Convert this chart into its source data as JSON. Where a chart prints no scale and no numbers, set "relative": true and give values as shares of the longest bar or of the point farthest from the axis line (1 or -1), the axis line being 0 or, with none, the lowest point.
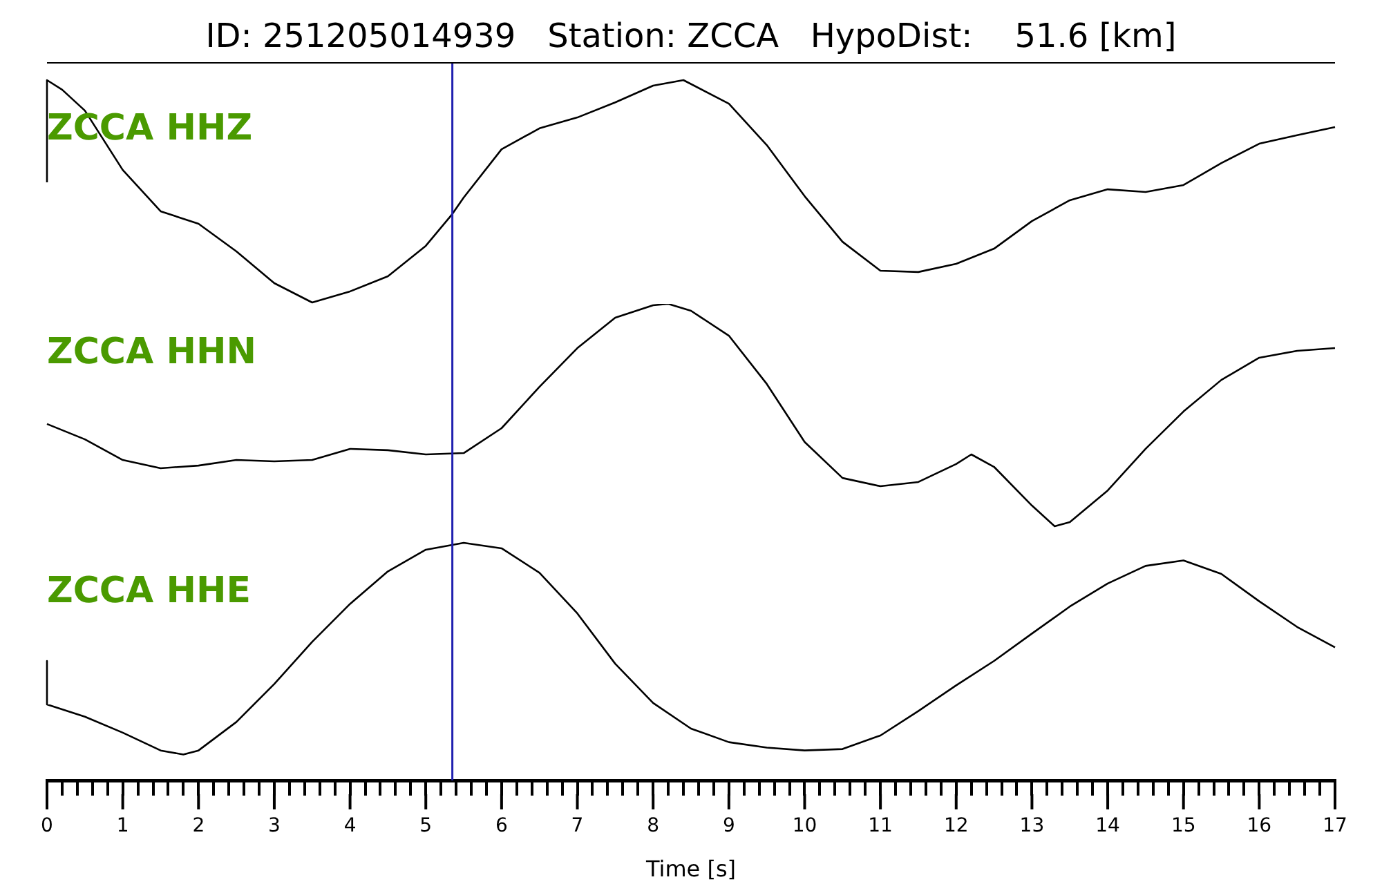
{
  "chart_data": [
    {
      "type": "line",
      "relative": true,
      "title": "ID: 251205014939   Station: ZCCA   HypoDist:    51.6 [km]",
      "annotations": [
        "ZCCA HHZ"
      ],
      "tick_labels": false,
      "xlim": [
        0,
        17
      ],
      "ref_lines": [
        {
          "axis": "x",
          "value": 5.35,
          "color": "#2020b0"
        }
      ],
      "x": [
        0,
        0,
        0.2,
        0.5,
        1,
        1.5,
        2,
        2.5,
        3,
        3.5,
        4,
        4.5,
        5,
        5.35,
        5.5,
        6,
        6.5,
        7,
        7.5,
        8,
        8.4,
        9,
        9.5,
        10,
        10.5,
        11,
        11.5,
        12,
        12.5,
        13,
        13.5,
        14,
        14.5,
        15,
        15.5,
        16,
        16.5,
        17
      ],
      "series": [
        {
          "color": "#000000",
          "values": [
            0.54,
            1,
            0.957,
            0.863,
            0.596,
            0.41,
            0.354,
            0.23,
            0.087,
            0,
            0.05,
            0.118,
            0.255,
            0.398,
            0.472,
            0.689,
            0.783,
            0.832,
            0.9,
            0.975,
            1,
            0.894,
            0.708,
            0.478,
            0.273,
            0.143,
            0.137,
            0.174,
            0.242,
            0.366,
            0.46,
            0.509,
            0.497,
            0.528,
            0.627,
            0.714,
            0.752,
            0.789
          ]
        }
      ]
    },
    {
      "type": "line",
      "relative": true,
      "annotations": [
        "ZCCA HHN"
      ],
      "tick_labels": false,
      "xlim": [
        0,
        17
      ],
      "ref_lines": [
        {
          "axis": "x",
          "value": 5.35,
          "color": "#2020b0"
        }
      ],
      "x": [
        0,
        0.5,
        1,
        1.5,
        2,
        2.5,
        3,
        3.5,
        4,
        4.5,
        5,
        5.5,
        6,
        6.5,
        7,
        7.5,
        8,
        8.2,
        8.5,
        9,
        9.5,
        10,
        10.5,
        11,
        11.5,
        12,
        12.2,
        12.5,
        13,
        13.3,
        13.5,
        14,
        14.5,
        15,
        15.5,
        16,
        16.5,
        17
      ],
      "series": [
        {
          "color": "#000000",
          "values": [
            0.46,
            0.391,
            0.298,
            0.261,
            0.273,
            0.298,
            0.292,
            0.298,
            0.348,
            0.342,
            0.323,
            0.329,
            0.441,
            0.627,
            0.801,
            0.938,
            0.994,
            1,
            0.969,
            0.857,
            0.64,
            0.379,
            0.217,
            0.18,
            0.199,
            0.28,
            0.323,
            0.267,
            0.093,
            0,
            0.019,
            0.161,
            0.348,
            0.516,
            0.658,
            0.758,
            0.789,
            0.801
          ]
        }
      ]
    },
    {
      "type": "line",
      "relative": true,
      "annotations": [
        "ZCCA HHE"
      ],
      "tick_labels": "x",
      "xlim": [
        0,
        17
      ],
      "xlabel": "Time [s]",
      "ref_lines": [
        {
          "axis": "x",
          "value": 5.35,
          "color": "#2020b0"
        }
      ],
      "xticks": [
        0,
        {
          "value": 0.2,
          "label": null
        },
        {
          "value": 0.4,
          "label": null
        },
        {
          "value": 0.6,
          "label": null
        },
        {
          "value": 0.8,
          "label": null
        },
        1,
        {
          "value": 1.2,
          "label": null
        },
        {
          "value": 1.4,
          "label": null
        },
        {
          "value": 1.6,
          "label": null
        },
        {
          "value": 1.8,
          "label": null
        },
        2,
        {
          "value": 2.2,
          "label": null
        },
        {
          "value": 2.4,
          "label": null
        },
        {
          "value": 2.6,
          "label": null
        },
        {
          "value": 2.8,
          "label": null
        },
        3,
        {
          "value": 3.2,
          "label": null
        },
        {
          "value": 3.4,
          "label": null
        },
        {
          "value": 3.6,
          "label": null
        },
        {
          "value": 3.8,
          "label": null
        },
        4,
        {
          "value": 4.2,
          "label": null
        },
        {
          "value": 4.4,
          "label": null
        },
        {
          "value": 4.6,
          "label": null
        },
        {
          "value": 4.8,
          "label": null
        },
        5,
        {
          "value": 5.2,
          "label": null
        },
        {
          "value": 5.4,
          "label": null
        },
        {
          "value": 5.6,
          "label": null
        },
        {
          "value": 5.8,
          "label": null
        },
        6,
        {
          "value": 6.2,
          "label": null
        },
        {
          "value": 6.4,
          "label": null
        },
        {
          "value": 6.6,
          "label": null
        },
        {
          "value": 6.8,
          "label": null
        },
        7,
        {
          "value": 7.2,
          "label": null
        },
        {
          "value": 7.4,
          "label": null
        },
        {
          "value": 7.6,
          "label": null
        },
        {
          "value": 7.8,
          "label": null
        },
        8,
        {
          "value": 8.2,
          "label": null
        },
        {
          "value": 8.4,
          "label": null
        },
        {
          "value": 8.6,
          "label": null
        },
        {
          "value": 8.8,
          "label": null
        },
        9,
        {
          "value": 9.2,
          "label": null
        },
        {
          "value": 9.4,
          "label": null
        },
        {
          "value": 9.6,
          "label": null
        },
        {
          "value": 9.8,
          "label": null
        },
        10,
        {
          "value": 10.2,
          "label": null
        },
        {
          "value": 10.4,
          "label": null
        },
        {
          "value": 10.6,
          "label": null
        },
        {
          "value": 10.8,
          "label": null
        },
        11,
        {
          "value": 11.2,
          "label": null
        },
        {
          "value": 11.4,
          "label": null
        },
        {
          "value": 11.6,
          "label": null
        },
        {
          "value": 11.8,
          "label": null
        },
        12,
        {
          "value": 12.2,
          "label": null
        },
        {
          "value": 12.4,
          "label": null
        },
        {
          "value": 12.6,
          "label": null
        },
        {
          "value": 12.8,
          "label": null
        },
        13,
        {
          "value": 13.2,
          "label": null
        },
        {
          "value": 13.4,
          "label": null
        },
        {
          "value": 13.6,
          "label": null
        },
        {
          "value": 13.8,
          "label": null
        },
        14,
        {
          "value": 14.2,
          "label": null
        },
        {
          "value": 14.4,
          "label": null
        },
        {
          "value": 14.6,
          "label": null
        },
        {
          "value": 14.8,
          "label": null
        },
        15,
        {
          "value": 15.2,
          "label": null
        },
        {
          "value": 15.4,
          "label": null
        },
        {
          "value": 15.6,
          "label": null
        },
        {
          "value": 15.8,
          "label": null
        },
        16,
        {
          "value": 16.2,
          "label": null
        },
        {
          "value": 16.4,
          "label": null
        },
        {
          "value": 16.6,
          "label": null
        },
        {
          "value": 16.8,
          "label": null
        },
        17
      ],
      "x": [
        0,
        0,
        0.5,
        1,
        1.5,
        1.8,
        2,
        2.5,
        3,
        3.5,
        4,
        4.5,
        5,
        5.5,
        6,
        6.5,
        7,
        7.5,
        8,
        8.5,
        9,
        9.5,
        10,
        10.5,
        11,
        11.5,
        12,
        12.5,
        13,
        13.5,
        14,
        14.5,
        15,
        15.5,
        16,
        16.5,
        17
      ],
      "series": [
        {
          "color": "#000000",
          "values": [
            0.503,
            0.32,
            0.268,
            0.201,
            0.126,
            0.109,
            0.126,
            0.246,
            0.406,
            0.583,
            0.743,
            0.88,
            0.971,
            1,
            0.977,
            0.874,
            0.703,
            0.491,
            0.326,
            0.218,
            0.161,
            0.138,
            0.126,
            0.132,
            0.189,
            0.292,
            0.4,
            0.503,
            0.618,
            0.732,
            0.829,
            0.903,
            0.926,
            0.869,
            0.754,
            0.646,
            0.56
          ]
        }
      ]
    }
  ]
}
